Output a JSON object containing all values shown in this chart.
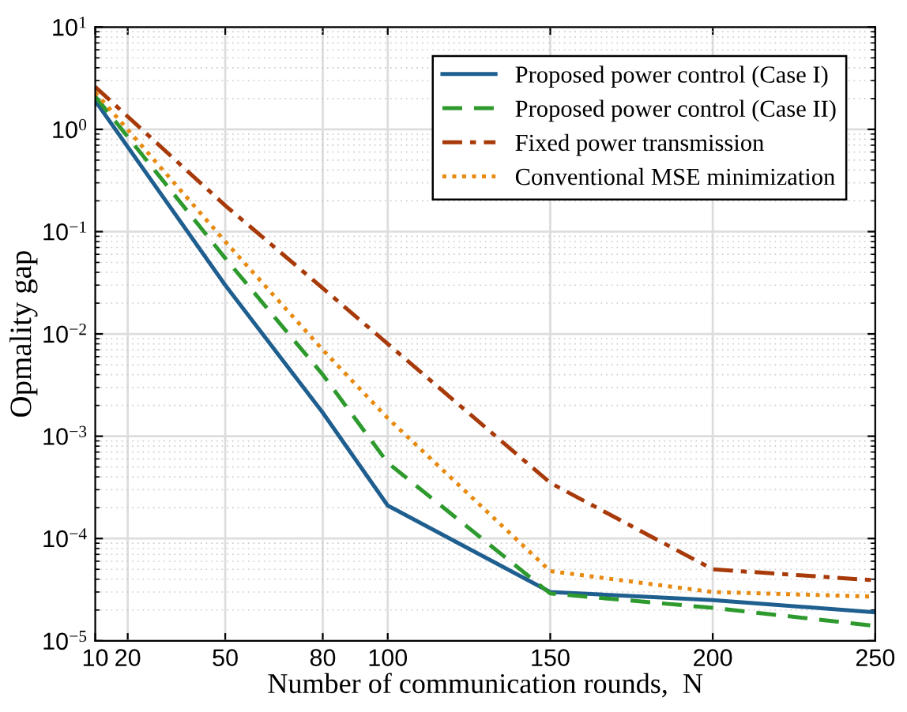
{
  "chart_data": {
    "type": "line",
    "xlabel": "Number of communication rounds,  N",
    "ylabel": "Opmality gap",
    "x": [
      10,
      50,
      80,
      100,
      150,
      200,
      250
    ],
    "series": [
      {
        "name": "Proposed power control (Case I)",
        "color": "#1f5f8f",
        "line_style": "solid",
        "values": [
          1.9,
          0.03,
          0.0017,
          0.00021,
          3e-05,
          2.5e-05,
          1.9e-05
        ]
      },
      {
        "name": "Proposed power control (Case II)",
        "color": "#2e9a2e",
        "line_style": "dashed",
        "values": [
          2.1,
          0.055,
          0.004,
          0.00055,
          2.9e-05,
          2.1e-05,
          1.4e-05
        ]
      },
      {
        "name": "Fixed power transmission",
        "color": "#a83a0a",
        "line_style": "dashdot",
        "values": [
          2.6,
          0.18,
          0.028,
          0.008,
          0.00035,
          5e-05,
          3.9e-05
        ]
      },
      {
        "name": "Conventional MSE minimization",
        "color": "#e88a10",
        "line_style": "dotted",
        "values": [
          2.3,
          0.08,
          0.007,
          0.0015,
          4.8e-05,
          3e-05,
          2.7e-05
        ]
      }
    ],
    "log": "y",
    "xlim": [
      10,
      250
    ],
    "xticks": [
      10,
      20,
      50,
      80,
      100,
      150,
      200,
      250
    ],
    "ylim": [
      1e-05,
      10
    ],
    "yticks": [
      {
        "value": 1e-05,
        "label": "10$^{−5}$"
      },
      {
        "value": 0.0001,
        "label": "10$^{−4}$"
      },
      {
        "value": 0.001,
        "label": "10$^{−3}$"
      },
      {
        "value": 0.01,
        "label": "10$^{−2}$"
      },
      {
        "value": 0.1,
        "label": "10$^{−1}$"
      },
      {
        "value": 1,
        "label": "10$^{0}$"
      },
      {
        "value": 10,
        "label": "10$^{1}$"
      }
    ],
    "grid": true,
    "legend": "top right"
  }
}
